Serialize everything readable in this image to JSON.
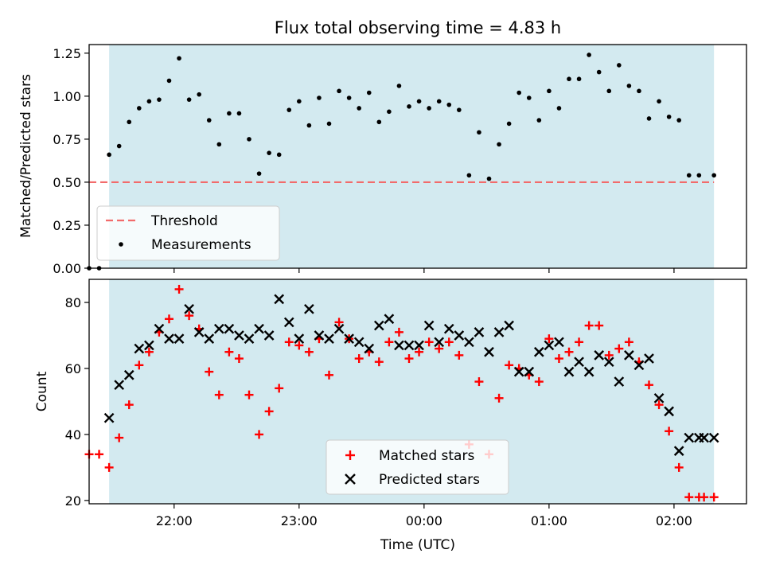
{
  "chart_data": {
    "title": "Flux total observing time = 4.83 h",
    "xlabel": "Time (UTC)",
    "x_units": "hours after 00:00 UTC (tick labels shown as HH:MM)",
    "xlim": [
      -2.68,
      2.58
    ],
    "xticks": [
      -2,
      -1,
      0,
      1,
      2
    ],
    "xtick_labels": [
      "22:00",
      "23:00",
      "00:00",
      "01:00",
      "02:00"
    ],
    "shaded_interval": [
      -2.52,
      2.32
    ],
    "shade_color": "#d3eaf0",
    "panels": [
      {
        "type": "scatter",
        "ylabel": "Matched/Predicted stars",
        "ylim": [
          0,
          1.3
        ],
        "yticks": [
          0,
          0.25,
          0.5,
          0.75,
          1.0,
          1.25
        ],
        "ytick_labels": [
          "0.00",
          "0.25",
          "0.50",
          "0.75",
          "1.00",
          "1.25"
        ],
        "legend": {
          "position": "lower-left",
          "entries": [
            "Threshold",
            "Measurements"
          ]
        },
        "threshold": {
          "name": "Threshold",
          "value": 0.5,
          "x_range": [
            -2.68,
            2.32
          ],
          "color": "#f26b6b",
          "style": "dashed"
        },
        "series": [
          {
            "name": "Measurements",
            "color": "#000000",
            "marker": "dot",
            "x": [
              -2.68,
              -2.6,
              -2.52,
              -2.44,
              -2.36,
              -2.28,
              -2.2,
              -2.12,
              -2.04,
              -1.96,
              -1.88,
              -1.8,
              -1.72,
              -1.64,
              -1.56,
              -1.48,
              -1.4,
              -1.32,
              -1.24,
              -1.16,
              -1.08,
              -1.0,
              -0.92,
              -0.84,
              -0.76,
              -0.68,
              -0.6,
              -0.52,
              -0.44,
              -0.36,
              -0.28,
              -0.2,
              -0.12,
              -0.04,
              0.04,
              0.12,
              0.2,
              0.28,
              0.36,
              0.44,
              0.52,
              0.6,
              0.68,
              0.76,
              0.84,
              0.92,
              1.0,
              1.08,
              1.16,
              1.24,
              1.32,
              1.4,
              1.48,
              1.56,
              1.64,
              1.72,
              1.8,
              1.88,
              1.96,
              2.04,
              2.12,
              2.2,
              2.32
            ],
            "y": [
              0.0,
              0.0,
              0.66,
              0.71,
              0.85,
              0.93,
              0.97,
              0.98,
              1.09,
              1.22,
              0.98,
              1.01,
              0.86,
              0.72,
              0.9,
              0.9,
              0.75,
              0.55,
              0.67,
              0.66,
              0.92,
              0.97,
              0.83,
              0.99,
              0.84,
              1.03,
              0.99,
              0.93,
              1.02,
              0.85,
              0.91,
              1.06,
              0.94,
              0.97,
              0.93,
              0.97,
              0.95,
              0.92,
              0.54,
              0.79,
              0.52,
              0.72,
              0.84,
              1.02,
              0.99,
              0.86,
              1.03,
              0.93,
              1.1,
              1.1,
              1.24,
              1.14,
              1.03,
              1.18,
              1.06,
              1.03,
              0.87,
              0.97,
              0.88,
              0.86,
              0.54,
              0.54,
              0.54
            ]
          }
        ]
      },
      {
        "type": "scatter",
        "ylabel": "Count",
        "ylim": [
          19,
          87
        ],
        "yticks": [
          20,
          40,
          60,
          80
        ],
        "ytick_labels": [
          "20",
          "40",
          "60",
          "80"
        ],
        "legend": {
          "position": "lower-center",
          "entries": [
            "Matched stars",
            "Predicted stars"
          ]
        },
        "series": [
          {
            "name": "Matched stars",
            "color": "#ff0000",
            "marker": "plus",
            "x": [
              -2.68,
              -2.6,
              -2.52,
              -2.44,
              -2.36,
              -2.28,
              -2.2,
              -2.12,
              -2.04,
              -1.96,
              -1.88,
              -1.8,
              -1.72,
              -1.64,
              -1.56,
              -1.48,
              -1.4,
              -1.32,
              -1.24,
              -1.16,
              -1.08,
              -1.0,
              -0.92,
              -0.84,
              -0.76,
              -0.68,
              -0.6,
              -0.52,
              -0.44,
              -0.36,
              -0.28,
              -0.2,
              -0.12,
              -0.04,
              0.04,
              0.12,
              0.2,
              0.28,
              0.36,
              0.44,
              0.52,
              0.6,
              0.68,
              0.76,
              0.84,
              0.92,
              1.0,
              1.08,
              1.16,
              1.24,
              1.32,
              1.4,
              1.48,
              1.56,
              1.64,
              1.72,
              1.8,
              1.88,
              1.96,
              2.04,
              2.12,
              2.2,
              2.24,
              2.32
            ],
            "y": [
              34,
              34,
              30,
              39,
              49,
              61,
              65,
              71,
              75,
              84,
              76,
              72,
              59,
              52,
              65,
              63,
              52,
              40,
              47,
              54,
              68,
              67,
              65,
              69,
              58,
              74,
              69,
              63,
              65,
              62,
              68,
              71,
              63,
              65,
              68,
              66,
              68,
              64,
              37,
              56,
              34,
              51,
              61,
              60,
              58,
              56,
              69,
              63,
              65,
              68,
              73,
              73,
              64,
              66,
              68,
              62,
              55,
              49,
              41,
              30,
              21,
              21,
              21,
              21
            ]
          },
          {
            "name": "Predicted stars",
            "color": "#000000",
            "marker": "x",
            "x": [
              -2.52,
              -2.44,
              -2.36,
              -2.28,
              -2.2,
              -2.12,
              -2.04,
              -1.96,
              -1.88,
              -1.8,
              -1.72,
              -1.64,
              -1.56,
              -1.48,
              -1.4,
              -1.32,
              -1.24,
              -1.16,
              -1.08,
              -1.0,
              -0.92,
              -0.84,
              -0.76,
              -0.68,
              -0.6,
              -0.52,
              -0.44,
              -0.36,
              -0.28,
              -0.2,
              -0.12,
              -0.04,
              0.04,
              0.12,
              0.2,
              0.28,
              0.36,
              0.44,
              0.52,
              0.6,
              0.68,
              0.76,
              0.84,
              0.92,
              1.0,
              1.08,
              1.16,
              1.24,
              1.32,
              1.4,
              1.48,
              1.56,
              1.64,
              1.72,
              1.8,
              1.88,
              1.96,
              2.04,
              2.12,
              2.2,
              2.24,
              2.32
            ],
            "y": [
              45,
              55,
              58,
              66,
              67,
              72,
              69,
              69,
              78,
              71,
              69,
              72,
              72,
              70,
              69,
              72,
              70,
              81,
              74,
              69,
              78,
              70,
              69,
              72,
              69,
              68,
              66,
              73,
              75,
              67,
              67,
              67,
              73,
              68,
              72,
              70,
              68,
              71,
              65,
              71,
              73,
              59,
              59,
              65,
              67,
              68,
              59,
              62,
              59,
              64,
              62,
              56,
              64,
              61,
              63,
              51,
              47,
              35,
              39,
              39,
              39,
              39
            ]
          }
        ]
      }
    ]
  }
}
